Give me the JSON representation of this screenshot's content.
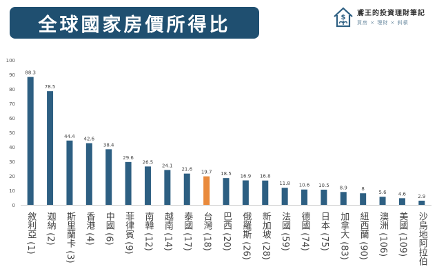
{
  "header": {
    "title": "全球國家房價所得比"
  },
  "brand": {
    "name": "鳶王的投資理財筆記",
    "tagline": "買房 × 理財 × 斜槓",
    "logo_icon": "house-dollar-plant-icon"
  },
  "chart_data": {
    "type": "bar",
    "title": "全球國家房價所得比",
    "categories": [
      "敘利亞 (1)",
      "迦納 (2)",
      "斯里蘭卡 (3)",
      "香港 (4)",
      "中國 (6)",
      "菲律賓 (9)",
      "南韓 (12)",
      "越南 (14)",
      "泰國 (17)",
      "台灣 (18)",
      "巴西 (20)",
      "俄羅斯 (26)",
      "新加坡 (28)",
      "法國 (59)",
      "德國 (74)",
      "日本 (75)",
      "加拿大 (83)",
      "紐西蘭 (90)",
      "澳洲 (106)",
      "美國 (109)",
      "沙烏地阿拉伯"
    ],
    "values": [
      88.3,
      78.5,
      44.4,
      42.6,
      38.4,
      29.6,
      26.5,
      24.1,
      21.6,
      19.7,
      18.5,
      16.9,
      16.8,
      11.8,
      10.6,
      10.5,
      8.9,
      8,
      5.6,
      4.6,
      2.9
    ],
    "data_labels": [
      "88.3",
      "78.5",
      "44.4",
      "42.6",
      "38.4",
      "29.6",
      "26.5",
      "24.1",
      "21.6",
      "19.7",
      "18.5",
      "16.9",
      "16.8",
      "11.8",
      "10.6",
      "10.5",
      "8.9",
      "8",
      "5.6",
      "4.6",
      "2.9"
    ],
    "highlight_index": 9,
    "ylim": [
      0,
      100
    ],
    "yticks": [
      "0",
      "10",
      "20",
      "30",
      "40",
      "50",
      "60",
      "70",
      "80",
      "90",
      "100"
    ],
    "xlabel": "",
    "ylabel": "",
    "grid": false,
    "colors": {
      "bar": "#2d5f82",
      "highlight": "#e98a3c",
      "title_bg": "#1f4f70"
    }
  }
}
